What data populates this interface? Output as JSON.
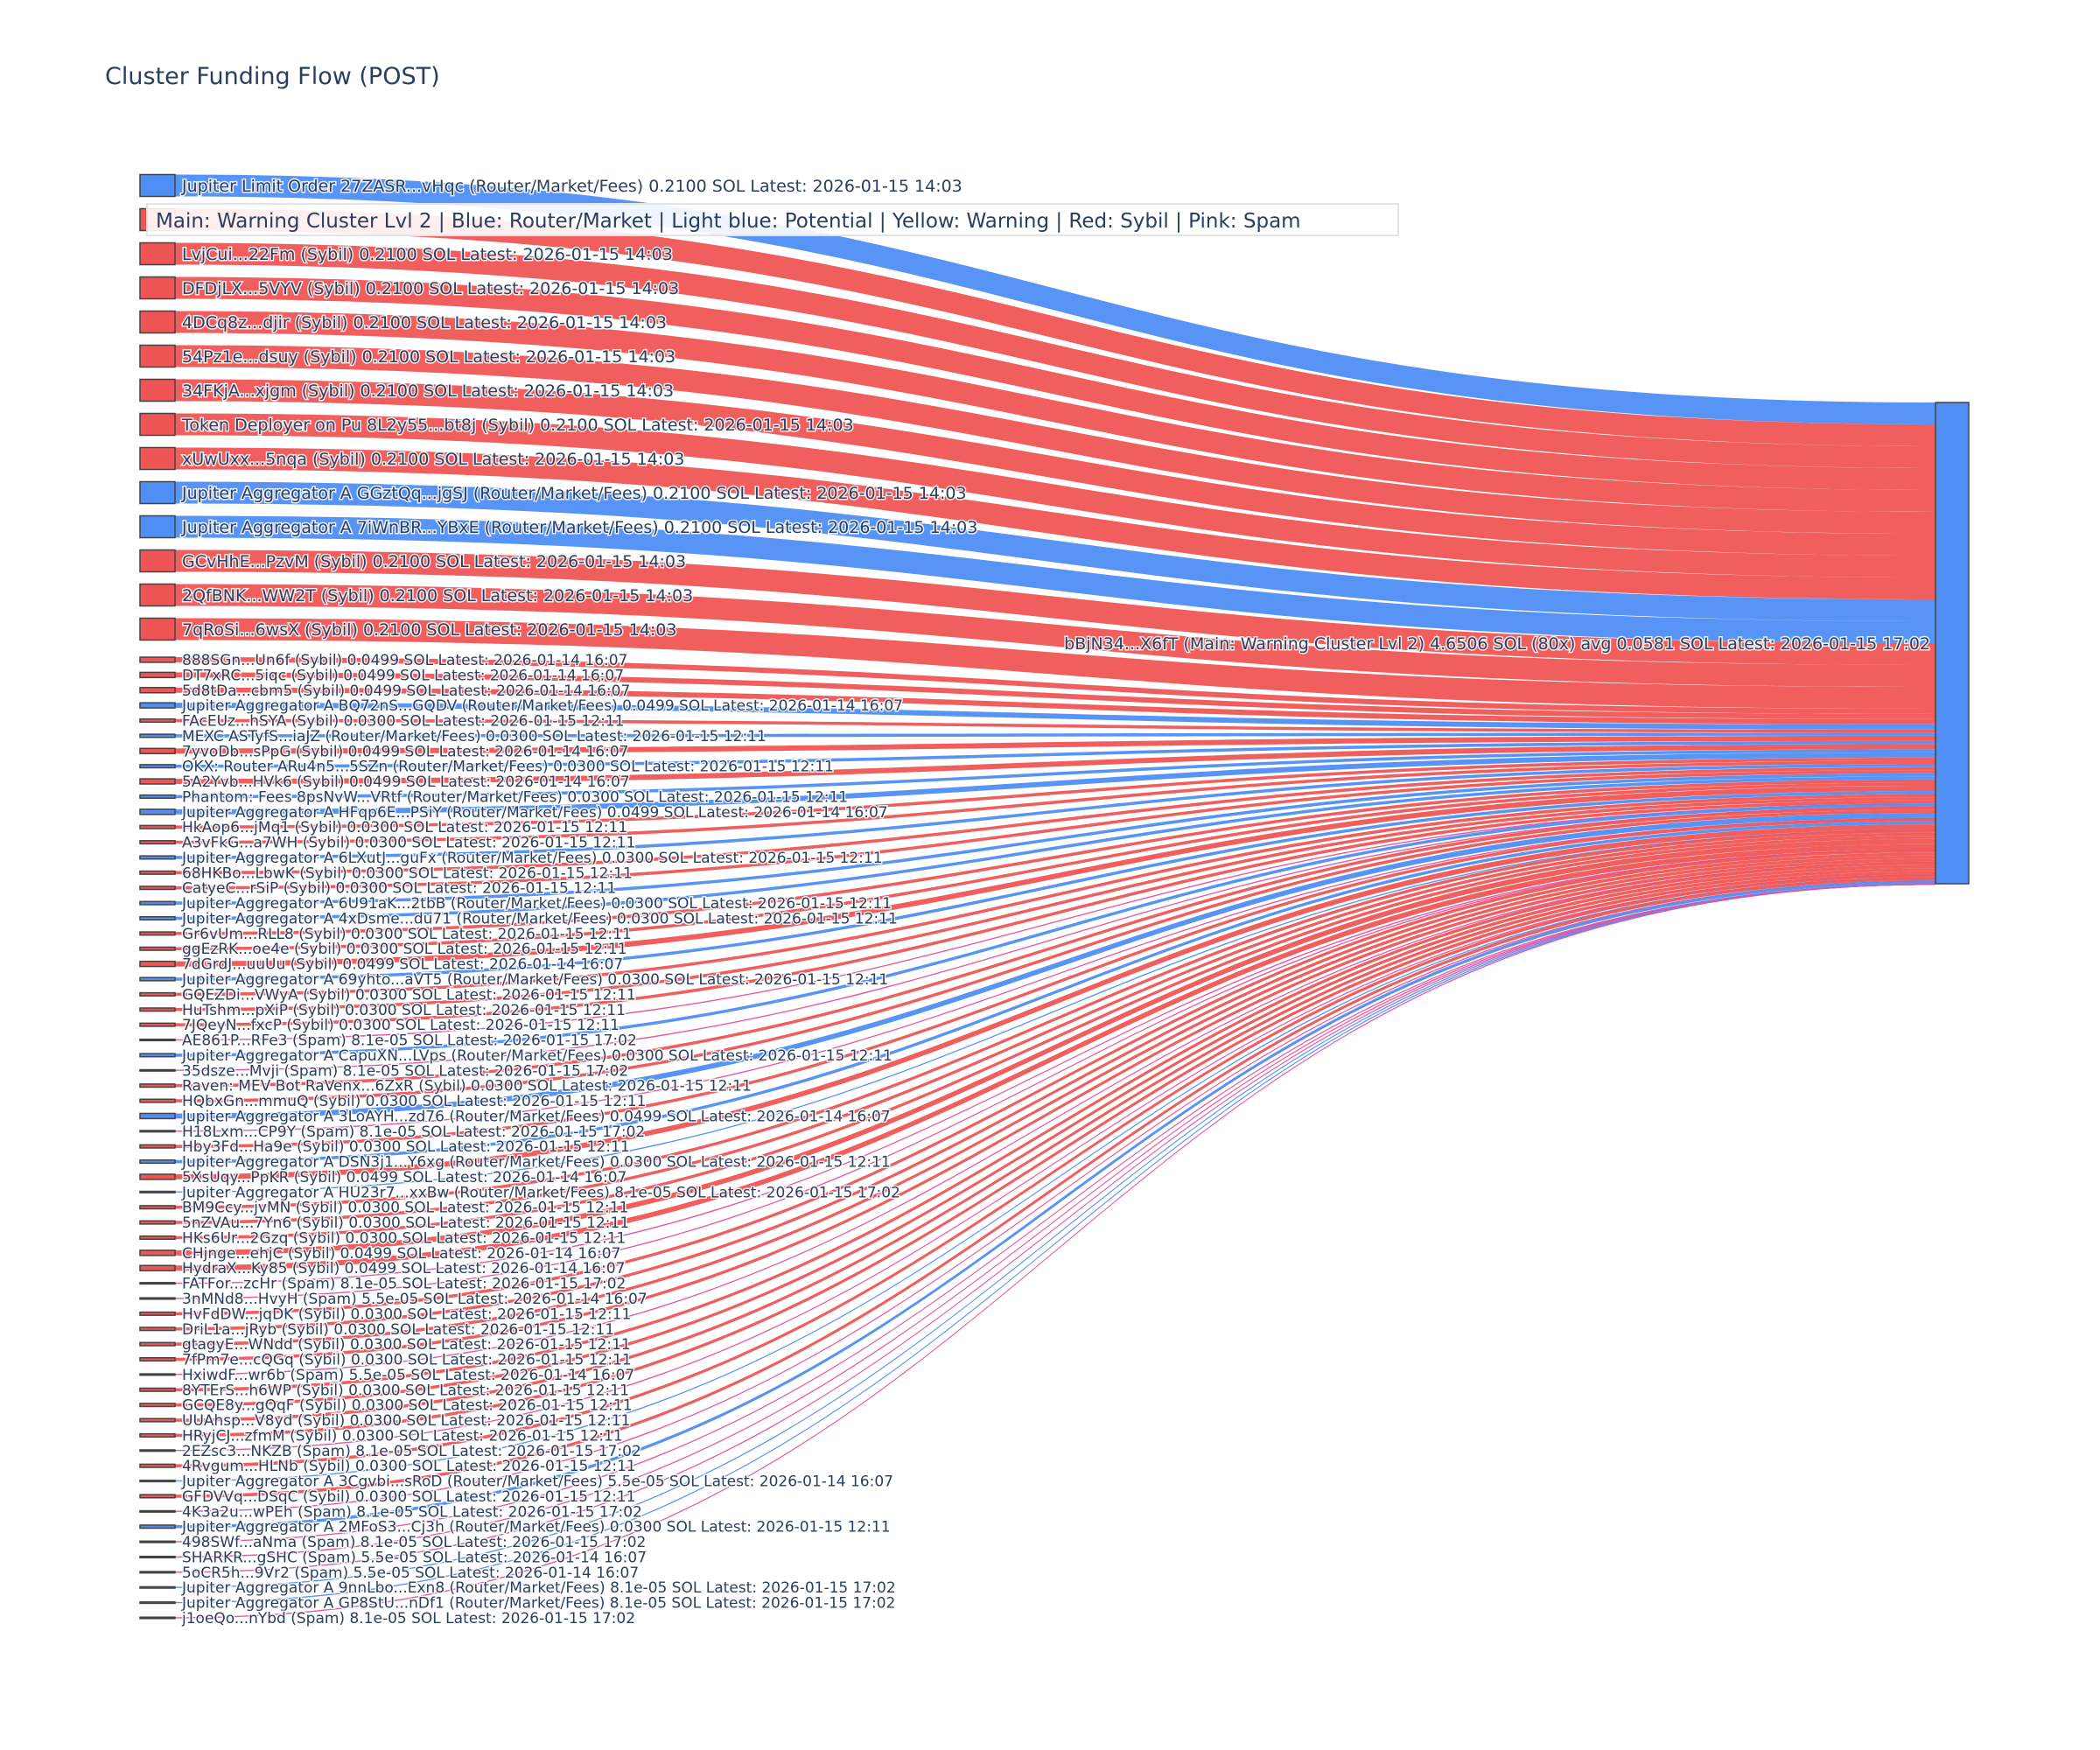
{
  "title": "Cluster Funding Flow (POST)",
  "legend": "Main: Warning Cluster Lvl 2  |  Blue: Router/Market | Light blue: Potential | Yellow: Warning | Red: Sybil | Pink: Spam",
  "colors": {
    "sybil": "#ef5555",
    "router": "#4f8ef5",
    "spam": "#e8509a",
    "spam_node": "#111111",
    "target": "#4f8ef5"
  },
  "target": {
    "label": "bBjN34...X6fT (Main: Warning Cluster Lvl 2) 4.6506 SOL (80x) avg 0.0581 SOL Latest: 2026-01-15 17:02",
    "value": 4.6506
  },
  "sources": [
    {
      "label": "Jupiter Limit Order  27ZASR...vHqc (Router/Market/Fees) 0.2100 SOL Latest: 2026-01-15 14:03",
      "value": 0.21,
      "type": "router"
    },
    {
      "label": "",
      "value": 0.21,
      "type": "sybil"
    },
    {
      "label": "LvjCui...22Fm (Sybil) 0.2100 SOL Latest: 2026-01-15 14:03",
      "value": 0.21,
      "type": "sybil"
    },
    {
      "label": "DFDjLX...5VYV (Sybil) 0.2100 SOL Latest: 2026-01-15 14:03",
      "value": 0.21,
      "type": "sybil"
    },
    {
      "label": "4DCq8z...djir (Sybil) 0.2100 SOL Latest: 2026-01-15 14:03",
      "value": 0.21,
      "type": "sybil"
    },
    {
      "label": "54Pz1e...dsuy (Sybil) 0.2100 SOL Latest: 2026-01-15 14:03",
      "value": 0.21,
      "type": "sybil"
    },
    {
      "label": "34FKjA...xjgm (Sybil) 0.2100 SOL Latest: 2026-01-15 14:03",
      "value": 0.21,
      "type": "sybil"
    },
    {
      "label": "Token Deployer on Pu 8L2y55...bt8j (Sybil) 0.2100 SOL Latest: 2026-01-15 14:03",
      "value": 0.21,
      "type": "sybil"
    },
    {
      "label": "xUwUxx...5nqa (Sybil) 0.2100 SOL Latest: 2026-01-15 14:03",
      "value": 0.21,
      "type": "sybil"
    },
    {
      "label": "Jupiter Aggregator A GGztQq...jgSJ (Router/Market/Fees) 0.2100 SOL Latest: 2026-01-15 14:03",
      "value": 0.21,
      "type": "router"
    },
    {
      "label": "Jupiter Aggregator A 7iWnBR...YBxE (Router/Market/Fees) 0.2100 SOL Latest: 2026-01-15 14:03",
      "value": 0.21,
      "type": "router"
    },
    {
      "label": "GCvHhE...PzvM (Sybil) 0.2100 SOL Latest: 2026-01-15 14:03",
      "value": 0.21,
      "type": "sybil"
    },
    {
      "label": "2QfBNK...WW2T (Sybil) 0.2100 SOL Latest: 2026-01-15 14:03",
      "value": 0.21,
      "type": "sybil"
    },
    {
      "label": "7qRoSi...6wsX (Sybil) 0.2100 SOL Latest: 2026-01-15 14:03",
      "value": 0.21,
      "type": "sybil"
    },
    {
      "label": "888SGn...Un6f (Sybil) 0.0499 SOL Latest: 2026-01-14 16:07",
      "value": 0.0499,
      "type": "sybil"
    },
    {
      "label": "DT7xRC...5iqc (Sybil) 0.0499 SOL Latest: 2026-01-14 16:07",
      "value": 0.0499,
      "type": "sybil"
    },
    {
      "label": "5d8tDa...cbm5 (Sybil) 0.0499 SOL Latest: 2026-01-14 16:07",
      "value": 0.0499,
      "type": "sybil"
    },
    {
      "label": "Jupiter Aggregator A BQ72nS...GQDV (Router/Market/Fees) 0.0499 SOL Latest: 2026-01-14 16:07",
      "value": 0.0499,
      "type": "router"
    },
    {
      "label": "FAcEUz...hSYA (Sybil) 0.0300 SOL Latest: 2026-01-15 12:11",
      "value": 0.03,
      "type": "sybil"
    },
    {
      "label": "MEXC ASTyfS...iaJZ (Router/Market/Fees) 0.0300 SOL Latest: 2026-01-15 12:11",
      "value": 0.03,
      "type": "router"
    },
    {
      "label": "7yvoDb...sPpG (Sybil) 0.0499 SOL Latest: 2026-01-14 16:07",
      "value": 0.0499,
      "type": "sybil"
    },
    {
      "label": "OKX: Router ARu4n5...5SZn (Router/Market/Fees) 0.0300 SOL Latest: 2026-01-15 12:11",
      "value": 0.03,
      "type": "router"
    },
    {
      "label": "5A2Yvb...HVk6 (Sybil) 0.0499 SOL Latest: 2026-01-14 16:07",
      "value": 0.0499,
      "type": "sybil"
    },
    {
      "label": "Phantom: Fees 8psNvW...VRtf (Router/Market/Fees) 0.0300 SOL Latest: 2026-01-15 12:11",
      "value": 0.03,
      "type": "router"
    },
    {
      "label": "Jupiter Aggregator A HFqp6E...PSiY (Router/Market/Fees) 0.0499 SOL Latest: 2026-01-14 16:07",
      "value": 0.0499,
      "type": "router"
    },
    {
      "label": "HkAop6...jMq1 (Sybil) 0.0300 SOL Latest: 2026-01-15 12:11",
      "value": 0.03,
      "type": "sybil"
    },
    {
      "label": "A3vFkG...a7WH (Sybil) 0.0300 SOL Latest: 2026-01-15 12:11",
      "value": 0.03,
      "type": "sybil"
    },
    {
      "label": "Jupiter Aggregator A 6LXutJ...guFx (Router/Market/Fees) 0.0300 SOL Latest: 2026-01-15 12:11",
      "value": 0.03,
      "type": "router"
    },
    {
      "label": "68HKBo...LbwK (Sybil) 0.0300 SOL Latest: 2026-01-15 12:11",
      "value": 0.03,
      "type": "sybil"
    },
    {
      "label": "CatyeC...rSiP (Sybil) 0.0300 SOL Latest: 2026-01-15 12:11",
      "value": 0.03,
      "type": "sybil"
    },
    {
      "label": "Jupiter Aggregator A 6U91aK...2tbB (Router/Market/Fees) 0.0300 SOL Latest: 2026-01-15 12:11",
      "value": 0.03,
      "type": "router"
    },
    {
      "label": "Jupiter Aggregator A 4xDsme...du71 (Router/Market/Fees) 0.0300 SOL Latest: 2026-01-15 12:11",
      "value": 0.03,
      "type": "router"
    },
    {
      "label": "Gr6vUm...RLL8 (Sybil) 0.0300 SOL Latest: 2026-01-15 12:11",
      "value": 0.03,
      "type": "sybil"
    },
    {
      "label": "ggEzRK...oe4e (Sybil) 0.0300 SOL Latest: 2026-01-15 12:11",
      "value": 0.03,
      "type": "sybil"
    },
    {
      "label": "7dGrdJ...uuUu (Sybil) 0.0499 SOL Latest: 2026-01-14 16:07",
      "value": 0.0499,
      "type": "sybil"
    },
    {
      "label": "Jupiter Aggregator A 69yhto...aVT5 (Router/Market/Fees) 0.0300 SOL Latest: 2026-01-15 12:11",
      "value": 0.03,
      "type": "router"
    },
    {
      "label": "GQEZDi...VWyA (Sybil) 0.0300 SOL Latest: 2026-01-15 12:11",
      "value": 0.03,
      "type": "sybil"
    },
    {
      "label": "HuTshm...pXiP (Sybil) 0.0300 SOL Latest: 2026-01-15 12:11",
      "value": 0.03,
      "type": "sybil"
    },
    {
      "label": "7JQeyN...fxcP (Sybil) 0.0300 SOL Latest: 2026-01-15 12:11",
      "value": 0.03,
      "type": "sybil"
    },
    {
      "label": "AE861P...RFe3 (Spam) 8.1e-05 SOL Latest: 2026-01-15 17:02",
      "value": 8.1e-05,
      "type": "spam"
    },
    {
      "label": "Jupiter Aggregator A CapuXN...LVps (Router/Market/Fees) 0.0300 SOL Latest: 2026-01-15 12:11",
      "value": 0.03,
      "type": "router"
    },
    {
      "label": "35dsze...Mvji (Spam) 8.1e-05 SOL Latest: 2026-01-15 17:02",
      "value": 8.1e-05,
      "type": "spam"
    },
    {
      "label": "Raven: MEV Bot RaVenx...6ZxR (Sybil) 0.0300 SOL Latest: 2026-01-15 12:11",
      "value": 0.03,
      "type": "sybil"
    },
    {
      "label": "HQbxGn...mmuQ (Sybil) 0.0300 SOL Latest: 2026-01-15 12:11",
      "value": 0.03,
      "type": "sybil"
    },
    {
      "label": "Jupiter Aggregator A 3LoAYH...zd76 (Router/Market/Fees) 0.0499 SOL Latest: 2026-01-14 16:07",
      "value": 0.0499,
      "type": "router"
    },
    {
      "label": "H18Lxm...CP9Y (Spam) 8.1e-05 SOL Latest: 2026-01-15 17:02",
      "value": 8.1e-05,
      "type": "spam"
    },
    {
      "label": "Hby3Fd...Ha9e (Sybil) 0.0300 SOL Latest: 2026-01-15 12:11",
      "value": 0.03,
      "type": "sybil"
    },
    {
      "label": "Jupiter Aggregator A DSN3j1...Y6xg (Router/Market/Fees) 0.0300 SOL Latest: 2026-01-15 12:11",
      "value": 0.03,
      "type": "router"
    },
    {
      "label": "5XsUqy...PpKR (Sybil) 0.0499 SOL Latest: 2026-01-14 16:07",
      "value": 0.0499,
      "type": "sybil"
    },
    {
      "label": "Jupiter Aggregator A HU23r7...xxBw (Router/Market/Fees) 8.1e-05 SOL Latest: 2026-01-15 17:02",
      "value": 8.1e-05,
      "type": "router"
    },
    {
      "label": "BM9Ccy...jvMN (Sybil) 0.0300 SOL Latest: 2026-01-15 12:11",
      "value": 0.03,
      "type": "sybil"
    },
    {
      "label": "5nZVAu...7Yn6 (Sybil) 0.0300 SOL Latest: 2026-01-15 12:11",
      "value": 0.03,
      "type": "sybil"
    },
    {
      "label": "HKs6Ur...2Gzq (Sybil) 0.0300 SOL Latest: 2026-01-15 12:11",
      "value": 0.03,
      "type": "sybil"
    },
    {
      "label": "CHjnge...ehjC (Sybil) 0.0499 SOL Latest: 2026-01-14 16:07",
      "value": 0.0499,
      "type": "sybil"
    },
    {
      "label": "HydraX...Ky85 (Sybil) 0.0499 SOL Latest: 2026-01-14 16:07",
      "value": 0.0499,
      "type": "sybil"
    },
    {
      "label": "FATFor...zcHr (Spam) 8.1e-05 SOL Latest: 2026-01-15 17:02",
      "value": 8.1e-05,
      "type": "spam"
    },
    {
      "label": "3nMNd8...HvyH (Spam) 5.5e-05 SOL Latest: 2026-01-14 16:07",
      "value": 5.5e-05,
      "type": "spam"
    },
    {
      "label": "HvFdDW...jqDK (Sybil) 0.0300 SOL Latest: 2026-01-15 12:11",
      "value": 0.03,
      "type": "sybil"
    },
    {
      "label": "DriL1a...jRyb (Sybil) 0.0300 SOL Latest: 2026-01-15 12:11",
      "value": 0.03,
      "type": "sybil"
    },
    {
      "label": "gtagyE...WNdd (Sybil) 0.0300 SOL Latest: 2026-01-15 12:11",
      "value": 0.03,
      "type": "sybil"
    },
    {
      "label": "7fPm7e...cQGq (Sybil) 0.0300 SOL Latest: 2026-01-15 12:11",
      "value": 0.03,
      "type": "sybil"
    },
    {
      "label": "HxiwdF...wr6b (Spam) 5.5e-05 SOL Latest: 2026-01-14 16:07",
      "value": 5.5e-05,
      "type": "spam"
    },
    {
      "label": "8YTErS...h6WP (Sybil) 0.0300 SOL Latest: 2026-01-15 12:11",
      "value": 0.03,
      "type": "sybil"
    },
    {
      "label": "GCQE8y...gQqF (Sybil) 0.0300 SOL Latest: 2026-01-15 12:11",
      "value": 0.03,
      "type": "sybil"
    },
    {
      "label": "UUAhsp...V8yd (Sybil) 0.0300 SOL Latest: 2026-01-15 12:11",
      "value": 0.03,
      "type": "sybil"
    },
    {
      "label": "HRyjCJ...zfmM (Sybil) 0.0300 SOL Latest: 2026-01-15 12:11",
      "value": 0.03,
      "type": "sybil"
    },
    {
      "label": "2EZsc3...NKZB (Spam) 8.1e-05 SOL Latest: 2026-01-15 17:02",
      "value": 8.1e-05,
      "type": "spam"
    },
    {
      "label": "4Rvgum...HLNb (Sybil) 0.0300 SOL Latest: 2026-01-15 12:11",
      "value": 0.03,
      "type": "sybil"
    },
    {
      "label": "Jupiter Aggregator A 3Cgvbi...sRoD (Router/Market/Fees) 5.5e-05 SOL Latest: 2026-01-14 16:07",
      "value": 5.5e-05,
      "type": "router"
    },
    {
      "label": "GFDVVq...DSqC (Sybil) 0.0300 SOL Latest: 2026-01-15 12:11",
      "value": 0.03,
      "type": "sybil"
    },
    {
      "label": "4K3a2u...wPEh (Spam) 8.1e-05 SOL Latest: 2026-01-15 17:02",
      "value": 8.1e-05,
      "type": "spam"
    },
    {
      "label": "Jupiter Aggregator A 2MFoS3...Cj3h (Router/Market/Fees) 0.0300 SOL Latest: 2026-01-15 12:11",
      "value": 0.03,
      "type": "router"
    },
    {
      "label": "498SWf...aNma (Spam) 8.1e-05 SOL Latest: 2026-01-15 17:02",
      "value": 8.1e-05,
      "type": "spam"
    },
    {
      "label": "SHARKR...gSHC (Spam) 5.5e-05 SOL Latest: 2026-01-14 16:07",
      "value": 5.5e-05,
      "type": "spam"
    },
    {
      "label": "5oCR5h...9Vr2 (Spam) 5.5e-05 SOL Latest: 2026-01-14 16:07",
      "value": 5.5e-05,
      "type": "spam"
    },
    {
      "label": "Jupiter Aggregator A 9nnLbo...Exn8 (Router/Market/Fees) 8.1e-05 SOL Latest: 2026-01-15 17:02",
      "value": 8.1e-05,
      "type": "router"
    },
    {
      "label": "Jupiter Aggregator A GP8StU...nDf1 (Router/Market/Fees) 8.1e-05 SOL Latest: 2026-01-15 17:02",
      "value": 8.1e-05,
      "type": "router"
    },
    {
      "label": "j1oeQo...nYbd (Spam) 8.1e-05 SOL Latest: 2026-01-15 17:02",
      "value": 8.1e-05,
      "type": "spam"
    }
  ]
}
